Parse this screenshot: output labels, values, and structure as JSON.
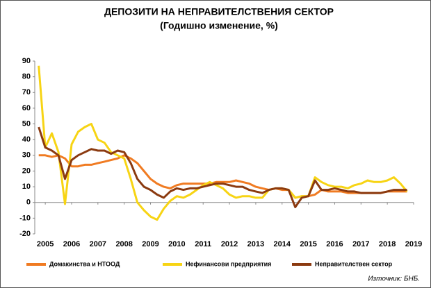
{
  "chart_data": {
    "type": "line",
    "title": "ДЕПОЗИТИ НА НЕПРАВИТЕЛСТВЕНИЯ СЕКТОР",
    "subtitle": "(Годишно изменение, %)",
    "source": "Източник: БНБ.",
    "x": [
      2004.75,
      2005,
      2005.25,
      2005.5,
      2005.75,
      2006,
      2006.25,
      2006.5,
      2006.75,
      2007,
      2007.25,
      2007.5,
      2007.75,
      2008,
      2008.25,
      2008.5,
      2008.75,
      2009,
      2009.25,
      2009.5,
      2009.75,
      2010,
      2010.25,
      2010.5,
      2010.75,
      2011,
      2011.25,
      2011.5,
      2011.75,
      2012,
      2012.25,
      2012.5,
      2012.75,
      2013,
      2013.25,
      2013.5,
      2013.75,
      2014,
      2014.25,
      2014.5,
      2014.75,
      2015,
      2015.25,
      2015.5,
      2015.75,
      2016,
      2016.25,
      2016.5,
      2016.75,
      2017,
      2017.25,
      2017.5,
      2017.75,
      2018,
      2018.25,
      2018.5,
      2018.75
    ],
    "series": [
      {
        "name": "Домакинства и НТООД",
        "color": "#f07b22",
        "values": [
          30,
          30,
          29,
          30,
          28,
          23,
          23,
          24,
          24,
          25,
          26,
          27,
          28,
          30,
          28,
          25,
          20,
          15,
          12,
          10,
          9,
          11,
          12,
          12,
          12,
          12,
          12,
          13,
          13,
          13,
          14,
          13,
          12,
          10,
          9,
          8,
          9,
          8,
          8,
          3,
          4,
          4,
          5,
          8,
          7,
          7,
          7,
          6,
          6,
          6,
          6,
          6,
          6,
          7,
          7,
          7,
          7
        ]
      },
      {
        "name": "Нефинансови предприятия",
        "color": "#f7d414",
        "values": [
          87,
          35,
          44,
          32,
          -1,
          37,
          45,
          48,
          50,
          40,
          38,
          32,
          30,
          28,
          15,
          0,
          -5,
          -9,
          -11,
          -4,
          1,
          4,
          3,
          5,
          8,
          11,
          13,
          11,
          9,
          5,
          3,
          4,
          4,
          3,
          3,
          8,
          9,
          9,
          8,
          3,
          4,
          4,
          16,
          13,
          11,
          10,
          10,
          9,
          11,
          12,
          14,
          13,
          13,
          14,
          16,
          12,
          7
        ]
      },
      {
        "name": "Неправителствен сектор",
        "color": "#8b3a10",
        "values": [
          48,
          35,
          33,
          30,
          15,
          27,
          30,
          32,
          34,
          33,
          33,
          31,
          33,
          32,
          25,
          15,
          10,
          8,
          5,
          3,
          7,
          9,
          8,
          9,
          9,
          10,
          11,
          12,
          12,
          11,
          10,
          10,
          8,
          7,
          6,
          8,
          9,
          9,
          8,
          -3,
          3,
          4,
          14,
          8,
          8,
          9,
          8,
          7,
          7,
          6,
          6,
          6,
          6,
          7,
          8,
          8,
          8
        ]
      }
    ],
    "xlim": [
      2004.6,
      2019
    ],
    "xticks": [
      2005,
      2006,
      2007,
      2008,
      2009,
      2010,
      2011,
      2012,
      2013,
      2014,
      2015,
      2016,
      2017,
      2018,
      2019
    ],
    "ylim": [
      -20,
      90
    ],
    "yticks": [
      -20,
      -10,
      0,
      10,
      20,
      30,
      40,
      50,
      60,
      70,
      80,
      90
    ],
    "grid": false
  }
}
